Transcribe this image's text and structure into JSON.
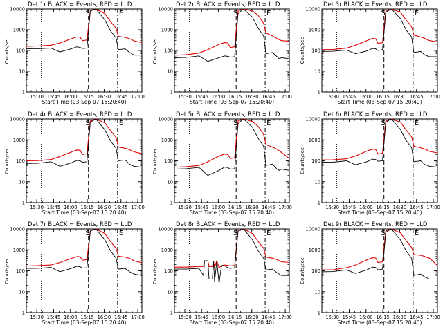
{
  "colors": {
    "events": "#000000",
    "lld": "#dd0000",
    "background": "#ffffff"
  },
  "chart_data": {
    "type": "line",
    "layout": "3x3 grid",
    "ylabel": "Counts/sec",
    "xlabel": "Start Time (03-Sep-07 15:20:40)",
    "y_scale": "log",
    "ylim": [
      1,
      10000
    ],
    "y_ticks": [
      1,
      10,
      100,
      1000,
      10000
    ],
    "y_tick_labels": [
      "1",
      "10",
      "100",
      "1000",
      "10000"
    ],
    "xlim_minutes_after_start": [
      0,
      103
    ],
    "x_tick_labels": [
      "15:30",
      "15:45",
      "16:00",
      "16:15",
      "16:30",
      "16:45",
      "17:00"
    ],
    "annotations": [
      "S",
      "E"
    ],
    "markers": [
      {
        "label": "S",
        "time": "16:16",
        "style": "dashed"
      },
      {
        "label": "E",
        "time": "16:42",
        "style": "dash-dot"
      }
    ],
    "dotted_line_time": "15:34",
    "series_legend": "BLACK = Events, RED = LLD",
    "panels": [
      {
        "title": "Det 1r BLACK = Events, RED = LLD",
        "x": [
          0,
          10,
          22,
          30,
          40,
          45,
          48,
          50,
          54,
          57,
          62,
          70,
          75,
          80,
          82,
          88,
          92,
          94,
          96,
          103
        ],
        "events": [
          120,
          122,
          130,
          85,
          120,
          150,
          140,
          125,
          130,
          8000,
          10000,
          3000,
          900,
          400,
          110,
          120,
          80,
          70,
          60,
          60
        ],
        "lld": [
          160,
          165,
          180,
          230,
          370,
          450,
          440,
          300,
          320,
          8000,
          10000,
          6000,
          2500,
          1200,
          480,
          430,
          370,
          330,
          290,
          240
        ]
      },
      {
        "title": "Det 2r BLACK = Events, RED = LLD",
        "x": [
          0,
          10,
          22,
          30,
          40,
          45,
          48,
          50,
          54,
          57,
          62,
          70,
          75,
          80,
          82,
          88,
          92,
          94,
          96,
          103
        ],
        "events": [
          45,
          46,
          55,
          30,
          45,
          55,
          52,
          48,
          50,
          6000,
          10000,
          4000,
          1200,
          500,
          70,
          80,
          50,
          40,
          45,
          40
        ],
        "lld": [
          60,
          62,
          75,
          110,
          200,
          240,
          230,
          140,
          150,
          8000,
          10000,
          8000,
          5000,
          2000,
          700,
          500,
          380,
          330,
          300,
          280
        ]
      },
      {
        "title": "Det 3r BLACK = Events, RED = LLD",
        "x": [
          0,
          10,
          22,
          30,
          40,
          45,
          48,
          50,
          54,
          57,
          62,
          70,
          75,
          80,
          82,
          88,
          92,
          94,
          96,
          103
        ],
        "events": [
          90,
          92,
          105,
          70,
          95,
          125,
          120,
          100,
          110,
          7000,
          10000,
          3500,
          1000,
          450,
          80,
          90,
          60,
          55,
          50,
          50
        ],
        "lld": [
          110,
          112,
          130,
          180,
          300,
          380,
          370,
          220,
          240,
          8000,
          10000,
          7000,
          3000,
          1400,
          550,
          450,
          380,
          330,
          300,
          260
        ]
      },
      {
        "title": "Det 4r BLACK = Events, RED = LLD",
        "x": [
          0,
          10,
          22,
          30,
          40,
          45,
          48,
          50,
          54,
          57,
          62,
          70,
          75,
          80,
          82,
          88,
          92,
          94,
          96,
          103
        ],
        "events": [
          75,
          76,
          90,
          55,
          80,
          105,
          100,
          85,
          90,
          7000,
          10000,
          3000,
          900,
          400,
          100,
          110,
          70,
          60,
          55,
          50
        ],
        "lld": [
          100,
          102,
          115,
          160,
          260,
          330,
          320,
          200,
          220,
          8000,
          10000,
          6500,
          2800,
          1300,
          450,
          400,
          340,
          300,
          270,
          220
        ]
      },
      {
        "title": "Det 5r BLACK = Events, RED = LLD",
        "x": [
          0,
          10,
          22,
          30,
          40,
          45,
          48,
          50,
          54,
          57,
          62,
          70,
          75,
          80,
          82,
          88,
          92,
          94,
          96,
          103
        ],
        "events": [
          40,
          42,
          48,
          20,
          35,
          50,
          47,
          40,
          42,
          6000,
          10000,
          4000,
          1200,
          500,
          60,
          70,
          40,
          35,
          40,
          35
        ],
        "lld": [
          50,
          52,
          60,
          90,
          170,
          210,
          200,
          130,
          140,
          8000,
          10000,
          7500,
          4500,
          1800,
          600,
          450,
          360,
          300,
          250,
          130
        ]
      },
      {
        "title": "Det 6r BLACK = Events, RED = LLD",
        "x": [
          0,
          10,
          22,
          30,
          40,
          45,
          48,
          50,
          54,
          57,
          62,
          70,
          75,
          80,
          82,
          88,
          92,
          94,
          96,
          103
        ],
        "events": [
          85,
          86,
          100,
          65,
          90,
          120,
          115,
          95,
          100,
          7000,
          10000,
          3200,
          950,
          420,
          90,
          100,
          65,
          60,
          55,
          50
        ],
        "lld": [
          110,
          112,
          125,
          170,
          290,
          360,
          350,
          210,
          230,
          8000,
          10000,
          7000,
          3000,
          1400,
          500,
          420,
          360,
          320,
          280,
          240
        ]
      },
      {
        "title": "Det 7r BLACK = Events, RED = LLD",
        "x": [
          0,
          10,
          22,
          30,
          40,
          45,
          48,
          50,
          54,
          57,
          62,
          70,
          75,
          80,
          82,
          88,
          92,
          94,
          96,
          103
        ],
        "events": [
          130,
          132,
          145,
          90,
          130,
          165,
          155,
          135,
          140,
          8000,
          10000,
          3000,
          900,
          400,
          120,
          130,
          90,
          80,
          70,
          60
        ],
        "lld": [
          170,
          175,
          190,
          250,
          390,
          480,
          470,
          320,
          340,
          8000,
          10000,
          6000,
          2500,
          1200,
          500,
          450,
          390,
          350,
          300,
          240
        ]
      },
      {
        "title": "Det 8r BLACK = Events, RED = LLD",
        "x": [
          0,
          10,
          22,
          26,
          27,
          30,
          31,
          34,
          35,
          36,
          38,
          40,
          42,
          43,
          45,
          48,
          50,
          54,
          57,
          62,
          70,
          75,
          80,
          82,
          88,
          92,
          94,
          96,
          103
        ],
        "events": [
          120,
          120,
          130,
          60,
          300,
          300,
          40,
          40,
          300,
          30,
          300,
          25,
          150,
          180,
          170,
          140,
          130,
          140,
          8000,
          10000,
          3000,
          900,
          400,
          110,
          120,
          80,
          70,
          60,
          60
        ],
        "lld": [
          150,
          150,
          160,
          160,
          300,
          300,
          160,
          160,
          300,
          150,
          300,
          140,
          170,
          180,
          190,
          180,
          170,
          180,
          8000,
          10000,
          6000,
          2500,
          1200,
          450,
          400,
          340,
          300,
          270,
          250
        ]
      },
      {
        "title": "Det 9r BLACK = Events, RED = LLD",
        "x": [
          0,
          10,
          22,
          30,
          40,
          45,
          48,
          50,
          54,
          57,
          62,
          70,
          75,
          80,
          82,
          88,
          92,
          94,
          96,
          103
        ],
        "events": [
          90,
          92,
          110,
          75,
          110,
          150,
          145,
          110,
          120,
          7000,
          10000,
          3000,
          900,
          400,
          60,
          70,
          50,
          45,
          40,
          40
        ],
        "lld": [
          110,
          112,
          140,
          190,
          330,
          420,
          410,
          250,
          270,
          8000,
          10000,
          6500,
          2800,
          1300,
          600,
          550,
          480,
          430,
          400,
          180
        ]
      }
    ]
  }
}
